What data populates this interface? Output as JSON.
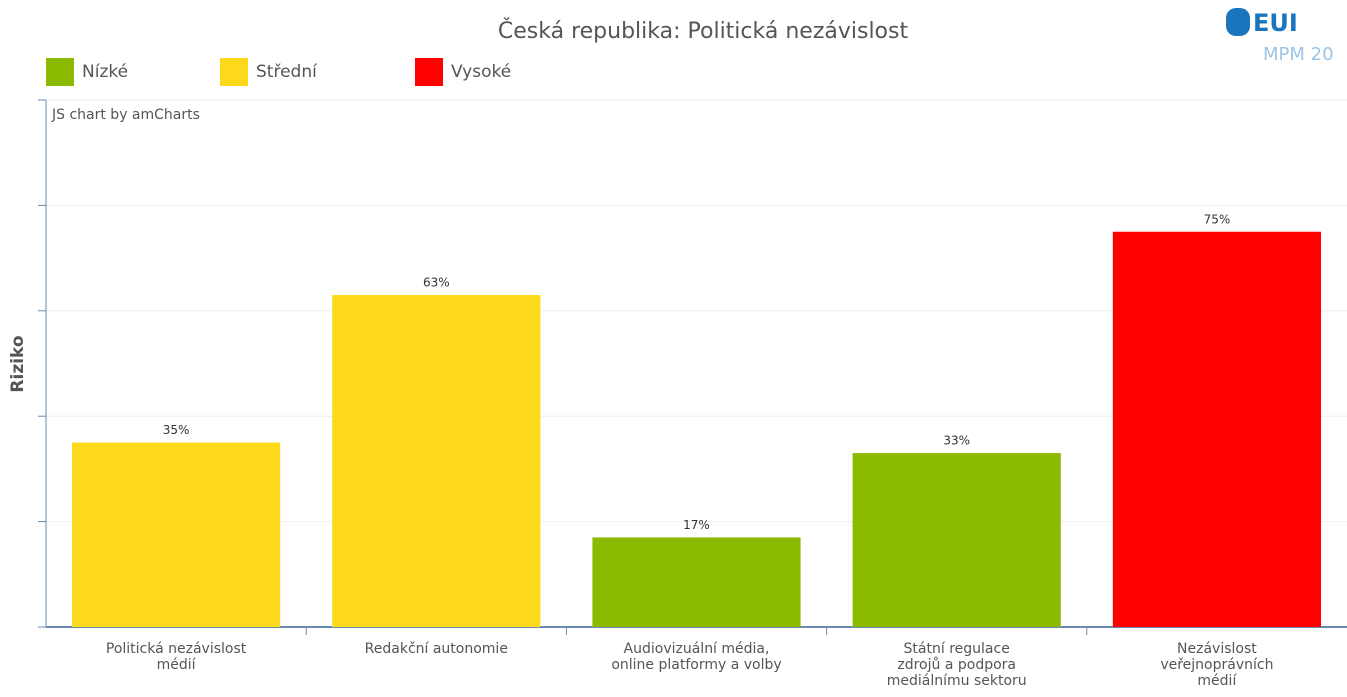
{
  "chart_data": {
    "type": "bar",
    "title": "Česká republika: Politická nezávislost",
    "y_label": "Riziko",
    "credit": "JS chart by amCharts",
    "logo": {
      "mark": "EUI",
      "caption": "MPM 20"
    },
    "legend": [
      {
        "name": "Nízké",
        "color": "#8cba00"
      },
      {
        "name": "Střední",
        "color": "#fcd91b"
      },
      {
        "name": "Vysoké",
        "color": "#ff0000"
      }
    ],
    "categories": [
      "Politická nezávislost\nmédií",
      "Redakční autonomie",
      "Audiovizuální média,\nonline platformy a volby",
      "Státní regulace\nzdrojů a podpora\nmediálnímu sektoru",
      "Nezávislost\nveřejnoprávních\nmédií"
    ],
    "values": [
      35,
      63,
      17,
      33,
      75
    ],
    "value_labels": [
      "35%",
      "63%",
      "17%",
      "33%",
      "75%"
    ],
    "colors": [
      "#fcd91b",
      "#fcd91b",
      "#8cba00",
      "#8cba00",
      "#ff0000"
    ],
    "ylim": [
      0,
      100
    ],
    "yticks": [
      0,
      20,
      40,
      60,
      80,
      100
    ],
    "grid": true
  }
}
